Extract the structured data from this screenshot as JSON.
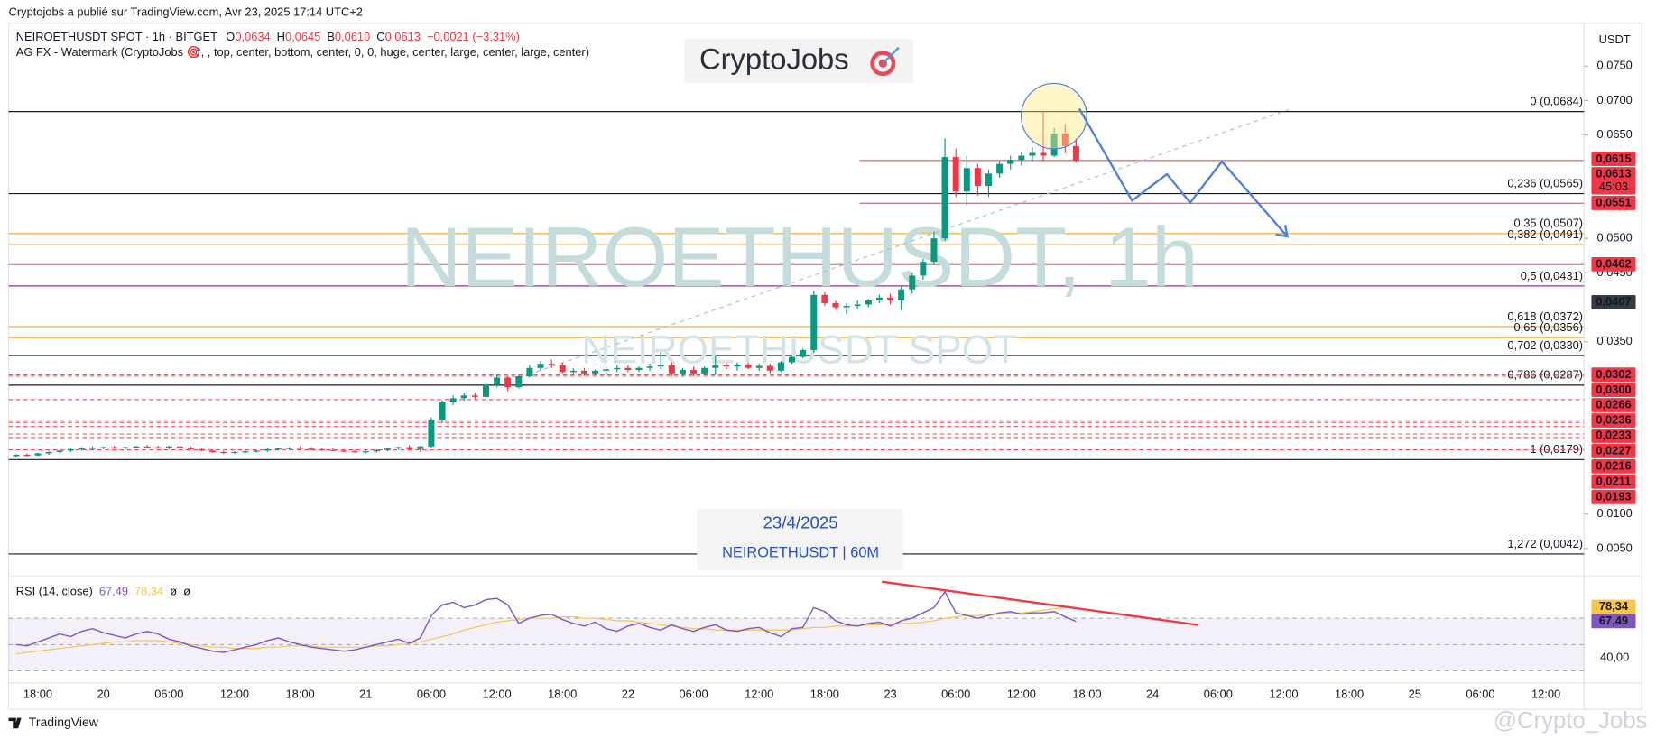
{
  "header": {
    "published": "Cryptojobs a publié sur TradingView.com, Avr 23, 2025 17:14 UTC+2",
    "symbol": "NEIROETHUSDT SPOT · 1h · BITGET",
    "ohlc": [
      {
        "key": "O",
        "value": "0,0634"
      },
      {
        "key": "H",
        "value": "0,0645"
      },
      {
        "key": "B",
        "value": "0,0610"
      },
      {
        "key": "C",
        "value": "0,0613"
      }
    ],
    "change": "−0,0021 (−3,31%)",
    "indicator": "AG FX - Watermark (CryptoJobs 🎯, , top, center, bottom, center, 0, 0, huge, center, large, center, large, center)",
    "currency": "USDT"
  },
  "logo_text": "CryptoJobs",
  "watermark": {
    "title": "NEIROETHUSDT, 1h",
    "subtitle": "NEIROETHUSDT SPOT"
  },
  "info_box": {
    "date": "23/4/2025",
    "symbol": "NEIROETHUSDT | 60M"
  },
  "chart_data": [
    {
      "type": "candlestick",
      "colors": {
        "up": "#089981",
        "down": "#f23645"
      },
      "ylim": [
        0.0011,
        0.0803
      ],
      "yticks": [
        {
          "value": 0.075,
          "label": "0,0750"
        },
        {
          "value": 0.07,
          "label": "0,0700"
        },
        {
          "value": 0.065,
          "label": "0,0650"
        },
        {
          "value": 0.05,
          "label": "0,0500"
        },
        {
          "value": 0.045,
          "label": "0,0450"
        },
        {
          "value": 0.035,
          "label": "0,0350"
        },
        {
          "value": 0.01,
          "label": "0,0100"
        },
        {
          "value": 0.005,
          "label": "0,0050"
        }
      ],
      "grid": false,
      "candles": [
        [
          0.0184,
          0.0187,
          0.0182,
          0.0186
        ],
        [
          0.0186,
          0.0188,
          0.0184,
          0.0185
        ],
        [
          0.0185,
          0.0189,
          0.0184,
          0.0188
        ],
        [
          0.0188,
          0.0191,
          0.0186,
          0.019
        ],
        [
          0.019,
          0.0193,
          0.0188,
          0.0192
        ],
        [
          0.0192,
          0.0196,
          0.019,
          0.0194
        ],
        [
          0.0194,
          0.0197,
          0.0192,
          0.0195
        ],
        [
          0.0195,
          0.0198,
          0.0193,
          0.0196
        ],
        [
          0.0196,
          0.0198,
          0.0194,
          0.0197
        ],
        [
          0.0197,
          0.0199,
          0.0195,
          0.0196
        ],
        [
          0.0196,
          0.0198,
          0.0194,
          0.0197
        ],
        [
          0.0197,
          0.0199,
          0.0195,
          0.0198
        ],
        [
          0.0198,
          0.02,
          0.0196,
          0.0197
        ],
        [
          0.0197,
          0.0199,
          0.0195,
          0.0196
        ],
        [
          0.0196,
          0.0199,
          0.0194,
          0.0198
        ],
        [
          0.0198,
          0.02,
          0.0195,
          0.0196
        ],
        [
          0.0196,
          0.0198,
          0.0193,
          0.0194
        ],
        [
          0.0194,
          0.0196,
          0.0191,
          0.0192
        ],
        [
          0.0192,
          0.0194,
          0.0189,
          0.019
        ],
        [
          0.019,
          0.0192,
          0.0187,
          0.0189
        ],
        [
          0.0189,
          0.0191,
          0.0187,
          0.019
        ],
        [
          0.019,
          0.0193,
          0.0188,
          0.0191
        ],
        [
          0.0191,
          0.0193,
          0.0189,
          0.0192
        ],
        [
          0.0192,
          0.0195,
          0.019,
          0.0194
        ],
        [
          0.0194,
          0.0196,
          0.0192,
          0.0195
        ],
        [
          0.0195,
          0.0197,
          0.0193,
          0.0196
        ],
        [
          0.0196,
          0.0198,
          0.0194,
          0.0195
        ],
        [
          0.0195,
          0.0197,
          0.0193,
          0.0194
        ],
        [
          0.0194,
          0.0196,
          0.0192,
          0.0193
        ],
        [
          0.0193,
          0.0195,
          0.0191,
          0.0192
        ],
        [
          0.0192,
          0.0194,
          0.019,
          0.0191
        ],
        [
          0.0191,
          0.0193,
          0.0189,
          0.019
        ],
        [
          0.019,
          0.0192,
          0.0188,
          0.0191
        ],
        [
          0.0191,
          0.0194,
          0.0189,
          0.0193
        ],
        [
          0.0193,
          0.0196,
          0.0191,
          0.0195
        ],
        [
          0.0195,
          0.0198,
          0.0193,
          0.0197
        ],
        [
          0.0197,
          0.02,
          0.0192,
          0.0194
        ],
        [
          0.0194,
          0.0199,
          0.019,
          0.0198
        ],
        [
          0.0198,
          0.024,
          0.0196,
          0.0236
        ],
        [
          0.0236,
          0.0265,
          0.0232,
          0.0262
        ],
        [
          0.0262,
          0.0272,
          0.0258,
          0.0268
        ],
        [
          0.0268,
          0.0276,
          0.0264,
          0.0272
        ],
        [
          0.0272,
          0.0276,
          0.0266,
          0.027
        ],
        [
          0.027,
          0.029,
          0.0268,
          0.0288
        ],
        [
          0.0288,
          0.0302,
          0.0284,
          0.0298
        ],
        [
          0.0298,
          0.03,
          0.0278,
          0.0284
        ],
        [
          0.0284,
          0.0302,
          0.0282,
          0.03
        ],
        [
          0.03,
          0.0316,
          0.0298,
          0.0312
        ],
        [
          0.0312,
          0.0322,
          0.0308,
          0.0318
        ],
        [
          0.0318,
          0.0324,
          0.0312,
          0.0316
        ],
        [
          0.0316,
          0.032,
          0.0304,
          0.0306
        ],
        [
          0.0306,
          0.0312,
          0.0302,
          0.0308
        ],
        [
          0.0308,
          0.0312,
          0.03,
          0.0304
        ],
        [
          0.0304,
          0.031,
          0.0302,
          0.0308
        ],
        [
          0.0308,
          0.0314,
          0.0304,
          0.031
        ],
        [
          0.031,
          0.0316,
          0.0306,
          0.0312
        ],
        [
          0.0312,
          0.0316,
          0.0306,
          0.0309
        ],
        [
          0.0309,
          0.0314,
          0.0306,
          0.0312
        ],
        [
          0.0312,
          0.0318,
          0.0308,
          0.0314
        ],
        [
          0.0314,
          0.0335,
          0.031,
          0.0316
        ],
        [
          0.0316,
          0.032,
          0.03,
          0.0304
        ],
        [
          0.0304,
          0.0312,
          0.03,
          0.0309
        ],
        [
          0.0309,
          0.0314,
          0.03,
          0.0304
        ],
        [
          0.0304,
          0.0314,
          0.0302,
          0.0312
        ],
        [
          0.0312,
          0.033,
          0.0302,
          0.0316
        ],
        [
          0.0316,
          0.032,
          0.031,
          0.0314
        ],
        [
          0.0314,
          0.032,
          0.0308,
          0.0317
        ],
        [
          0.0317,
          0.032,
          0.031,
          0.0312
        ],
        [
          0.0312,
          0.0318,
          0.0308,
          0.0315
        ],
        [
          0.0315,
          0.0318,
          0.0304,
          0.0308
        ],
        [
          0.0308,
          0.0322,
          0.0306,
          0.032
        ],
        [
          0.032,
          0.033,
          0.0318,
          0.0328
        ],
        [
          0.0328,
          0.034,
          0.0326,
          0.0338
        ],
        [
          0.0338,
          0.0424,
          0.0334,
          0.0418
        ],
        [
          0.0418,
          0.0422,
          0.0402,
          0.0406
        ],
        [
          0.0406,
          0.041,
          0.0396,
          0.04
        ],
        [
          0.04,
          0.0406,
          0.039,
          0.0402
        ],
        [
          0.0402,
          0.041,
          0.0398,
          0.0404
        ],
        [
          0.0404,
          0.0412,
          0.04,
          0.041
        ],
        [
          0.041,
          0.0418,
          0.0406,
          0.0414
        ],
        [
          0.0414,
          0.042,
          0.0404,
          0.041
        ],
        [
          0.041,
          0.043,
          0.0396,
          0.0426
        ],
        [
          0.0426,
          0.045,
          0.042,
          0.0446
        ],
        [
          0.0446,
          0.047,
          0.044,
          0.0466
        ],
        [
          0.0466,
          0.051,
          0.0462,
          0.05
        ],
        [
          0.05,
          0.0645,
          0.0496,
          0.0618
        ],
        [
          0.0618,
          0.063,
          0.056,
          0.0568
        ],
        [
          0.0568,
          0.062,
          0.0548,
          0.0602
        ],
        [
          0.0602,
          0.0608,
          0.0562,
          0.0576
        ],
        [
          0.0576,
          0.06,
          0.056,
          0.0594
        ],
        [
          0.0594,
          0.0612,
          0.0588,
          0.0608
        ],
        [
          0.0608,
          0.062,
          0.06,
          0.0614
        ],
        [
          0.0614,
          0.0626,
          0.0606,
          0.062
        ],
        [
          0.062,
          0.0632,
          0.0612,
          0.0624
        ],
        [
          0.0624,
          0.0684,
          0.0612,
          0.062
        ],
        [
          0.062,
          0.066,
          0.0618,
          0.0652
        ],
        [
          0.0652,
          0.0666,
          0.0624,
          0.0634
        ],
        [
          0.0634,
          0.0645,
          0.061,
          0.0613
        ]
      ],
      "fib_levels": [
        {
          "label": "0 (0,0684)",
          "value": 0.0684,
          "color": "#131722"
        },
        {
          "label": "0,236 (0,0565)",
          "value": 0.0565,
          "color": "#131722"
        },
        {
          "label": "0,35 (0,0507)",
          "value": 0.0507,
          "color": "#f5a623"
        },
        {
          "label": "0,382 (0,0491)",
          "value": 0.0491,
          "color": "#f5a623"
        },
        {
          "label": "0,5 (0,0431)",
          "value": 0.0431,
          "color": "#9c27b0"
        },
        {
          "label": "0,618 (0,0372)",
          "value": 0.0372,
          "color": "#f5a623"
        },
        {
          "label": "0,65 (0,0356)",
          "value": 0.0356,
          "color": "#f5a623"
        },
        {
          "label": "0,702 (0,0330)",
          "value": 0.033,
          "color": "#131722"
        },
        {
          "label": "0,786 (0,0287)",
          "value": 0.0287,
          "color": "#131722"
        },
        {
          "label": "1 (0,0179)",
          "value": 0.0179,
          "color": "#131722"
        },
        {
          "label": "1,272 (0,0042)",
          "value": 0.0042,
          "color": "#131722"
        }
      ],
      "price_tags": [
        {
          "value": 0.0615,
          "label": "0,0615",
          "color": "#f23645",
          "line": "none"
        },
        {
          "value": 0.0613,
          "label": "0,0613",
          "color": "#f23645",
          "line": "short"
        },
        {
          "value": 0.0551,
          "label": "0,0551",
          "color": "#f23645",
          "line": "short"
        },
        {
          "value": 0.0462,
          "label": "0,0462",
          "color": "#f23645",
          "line": "full"
        },
        {
          "value": 0.0407,
          "label": "0,0407",
          "color": "#363a45",
          "line": "none"
        },
        {
          "value": 0.0302,
          "label": "0,0302",
          "color": "#f23645",
          "line": "dashed"
        },
        {
          "value": 0.03,
          "label": "0,0300",
          "color": "#f23645",
          "line": "dashed"
        },
        {
          "value": 0.0266,
          "label": "0,0266",
          "color": "#f23645",
          "line": "dashed"
        },
        {
          "value": 0.0236,
          "label": "0,0236",
          "color": "#f23645",
          "line": "dashed"
        },
        {
          "value": 0.0233,
          "label": "0,0233",
          "color": "#f23645",
          "line": "dashed"
        },
        {
          "value": 0.0227,
          "label": "0,0227",
          "color": "#f23645",
          "line": "dashed"
        },
        {
          "value": 0.0216,
          "label": "0,0216",
          "color": "#f23645",
          "line": "dashed"
        },
        {
          "value": 0.0211,
          "label": "0,0211",
          "color": "#f23645",
          "line": "dashed"
        },
        {
          "value": 0.0193,
          "label": "0,0193",
          "color": "#f23645",
          "line": "dashed"
        }
      ],
      "countdown": "45:03"
    },
    {
      "type": "line",
      "title": "RSI (14, close)",
      "ylim": [
        22.4,
        100
      ],
      "yticks": [
        {
          "value": 40,
          "label": "40,00"
        }
      ],
      "levels": [
        30,
        50,
        70
      ],
      "extra": [
        "ø",
        "ø"
      ],
      "series": [
        {
          "color": "#7e57c2",
          "last_label": "67,49",
          "values": [
            50,
            49,
            52,
            55,
            58,
            56,
            60,
            62,
            59,
            57,
            55,
            58,
            60,
            58,
            54,
            52,
            49,
            47,
            45,
            44,
            46,
            48,
            50,
            53,
            55,
            52,
            50,
            48,
            47,
            46,
            45,
            46,
            48,
            50,
            52,
            54,
            51,
            55,
            72,
            80,
            82,
            78,
            80,
            84,
            85,
            80,
            66,
            70,
            72,
            73,
            69,
            66,
            64,
            67,
            62,
            60,
            64,
            66,
            63,
            61,
            65,
            62,
            60,
            63,
            65,
            61,
            60,
            62,
            63,
            59,
            56,
            62,
            63,
            78,
            75,
            68,
            65,
            64,
            66,
            67,
            64,
            68,
            70,
            74,
            78,
            90,
            74,
            72,
            70,
            72,
            74,
            75,
            73,
            74,
            74,
            75,
            71,
            67.49
          ]
        },
        {
          "color": "#f7c548",
          "last_label": "78,34",
          "values": [
            43,
            44,
            45,
            46,
            47,
            48,
            49,
            50,
            51,
            52,
            52,
            53,
            53,
            53,
            52,
            51,
            50,
            49,
            48,
            48,
            47,
            47,
            47,
            48,
            48,
            49,
            49,
            49,
            48,
            48,
            48,
            48,
            48,
            49,
            49,
            50,
            51,
            52,
            54,
            56,
            58,
            61,
            63,
            65,
            67,
            68,
            69,
            70,
            70,
            70,
            71,
            71,
            70,
            70,
            69,
            68,
            68,
            67,
            66,
            65,
            64,
            63,
            62,
            62,
            61,
            61,
            61,
            61,
            61,
            61,
            61,
            61,
            62,
            63,
            63,
            64,
            64,
            64,
            65,
            65,
            65,
            66,
            66,
            67,
            68,
            70,
            71,
            72,
            72,
            73,
            73,
            74,
            74,
            75,
            76,
            77,
            78,
            78.34
          ]
        }
      ]
    }
  ],
  "time_labels": [
    "18:00",
    "20",
    "06:00",
    "12:00",
    "18:00",
    "21",
    "06:00",
    "12:00",
    "18:00",
    "22",
    "06:00",
    "12:00",
    "18:00",
    "23",
    "06:00",
    "12:00",
    "18:00",
    "24",
    "06:00",
    "12:00",
    "18:00",
    "25",
    "06:00",
    "12:00"
  ],
  "footer": {
    "brand": "TradingView",
    "handle": "@Crypto_Jobs"
  }
}
